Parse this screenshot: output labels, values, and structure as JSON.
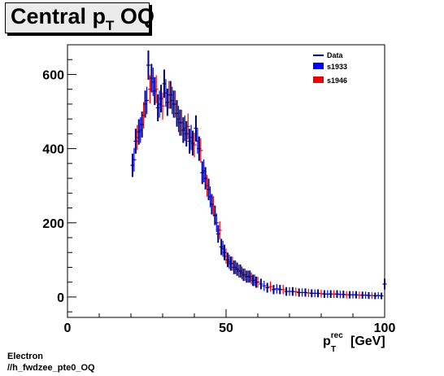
{
  "title": {
    "main": "Central p",
    "sub": "T",
    "tail": " OQ"
  },
  "footer": {
    "line1": "Electron",
    "line2": "//h_fwdzee_pte0_OQ"
  },
  "chart_data": {
    "type": "scatter",
    "xlabel": {
      "main": "p",
      "sup": "rec",
      "sub": "T",
      "tail": "[GeV]"
    },
    "xlim": [
      0,
      100
    ],
    "ylim": [
      -55,
      680
    ],
    "xticks": [
      0,
      50,
      100
    ],
    "yticks": [
      0,
      200,
      400,
      600
    ],
    "legend_position": "top-right",
    "grid": false,
    "series": [
      {
        "name": "Data",
        "color": "#000080",
        "style": "line",
        "x": [
          20.5,
          21.5,
          22.5,
          23.5,
          24.5,
          25.5,
          26.5,
          27.5,
          28.5,
          29.5,
          30.5,
          31.5,
          32.5,
          33.5,
          34.5,
          35.5,
          36.5,
          37.5,
          38.5,
          39.5,
          40.5,
          41.5,
          42.5,
          43.5,
          44.5,
          45.5,
          46.5,
          47.5,
          48.5,
          49.5,
          50.5,
          51.5,
          52.5,
          53.5,
          54.5,
          55.5,
          56.5,
          57.5,
          58.5,
          59.5,
          61,
          63,
          65,
          67,
          69,
          71,
          73,
          75,
          77,
          79,
          81,
          83,
          85,
          87,
          89,
          91,
          93,
          95,
          97,
          99,
          100
        ],
        "y": [
          355,
          420,
          445,
          465,
          520,
          625,
          590,
          555,
          510,
          535,
          575,
          525,
          545,
          520,
          495,
          470,
          450,
          440,
          420,
          415,
          455,
          400,
          335,
          320,
          290,
          250,
          220,
          170,
          135,
          120,
          100,
          90,
          80,
          75,
          70,
          60,
          55,
          55,
          45,
          40,
          35,
          25,
          20,
          20,
          15,
          15,
          12,
          12,
          10,
          10,
          8,
          8,
          8,
          7,
          6,
          6,
          5,
          4,
          3,
          3,
          35
        ]
      },
      {
        "name": "s1933",
        "color": "#0000ee",
        "style": "box",
        "x": [
          21,
          23,
          25,
          27,
          29,
          31,
          33,
          35,
          37,
          39,
          41,
          43,
          45,
          47,
          49,
          51,
          53,
          55,
          57,
          59,
          62,
          66,
          70,
          74,
          78,
          82,
          86,
          90,
          94,
          98
        ],
        "y": [
          370,
          450,
          530,
          580,
          520,
          550,
          530,
          480,
          455,
          430,
          420,
          340,
          270,
          200,
          130,
          95,
          80,
          65,
          55,
          45,
          30,
          22,
          15,
          12,
          10,
          8,
          7,
          6,
          5,
          4
        ]
      },
      {
        "name": "s1946",
        "color": "#ee0000",
        "style": "box",
        "x": [
          22,
          24,
          26,
          28,
          30,
          32,
          34,
          36,
          38,
          40,
          42,
          44,
          46,
          48,
          50,
          52,
          54,
          56,
          58,
          60,
          64,
          68,
          72,
          76,
          80,
          84,
          88,
          92,
          96
        ],
        "y": [
          430,
          490,
          560,
          560,
          515,
          545,
          520,
          470,
          460,
          410,
          395,
          300,
          245,
          180,
          110,
          90,
          70,
          60,
          50,
          40,
          28,
          20,
          14,
          11,
          9,
          8,
          6,
          5,
          4
        ]
      }
    ]
  }
}
